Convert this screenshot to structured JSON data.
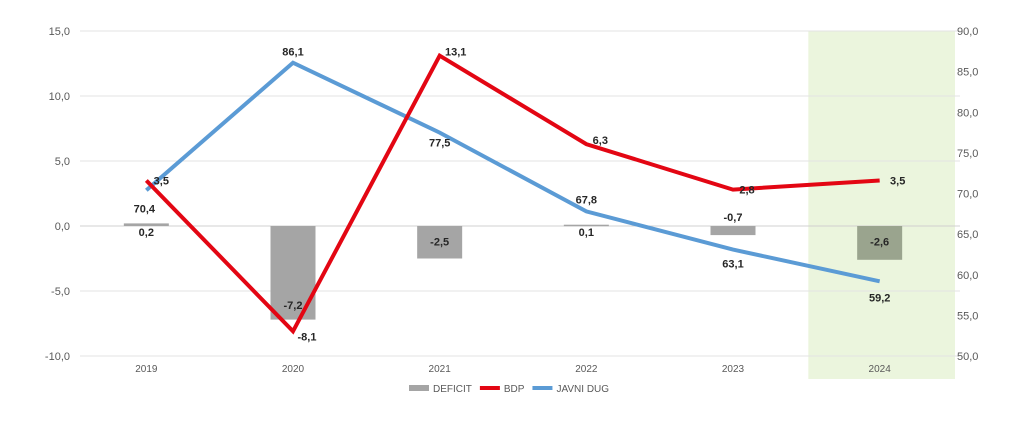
{
  "chart_data": {
    "type": "bar+line",
    "categories": [
      "2019",
      "2020",
      "2021",
      "2022",
      "2023",
      "2024"
    ],
    "series": [
      {
        "name": "DEFICIT",
        "kind": "bar",
        "axis": "left",
        "color": "#a5a5a5",
        "values": [
          0.2,
          -7.2,
          -2.5,
          0.1,
          -0.7,
          -2.6
        ],
        "labels": [
          "0,2",
          "-7,2",
          "-2,5",
          "0,1",
          "-0,7",
          "-2,6"
        ]
      },
      {
        "name": "BDP",
        "kind": "line",
        "axis": "left",
        "color": "#e30613",
        "values": [
          3.5,
          -8.1,
          13.1,
          6.3,
          2.8,
          3.5
        ],
        "labels": [
          "3,5",
          "-8,1",
          "13,1",
          "6,3",
          "2,8",
          "3,5"
        ]
      },
      {
        "name": "JAVNI DUG",
        "kind": "line",
        "axis": "right",
        "color": "#5b9bd5",
        "values": [
          70.4,
          86.1,
          77.5,
          67.8,
          63.1,
          59.2
        ],
        "labels": [
          "70,4",
          "86,1",
          "77,5",
          "67,8",
          "63,1",
          "59,2"
        ]
      }
    ],
    "y_left": {
      "min": -10,
      "max": 15,
      "step": 5,
      "ticks": [
        "15,0",
        "10,0",
        "5,0",
        "0,0",
        "-5,0",
        "-10,0"
      ]
    },
    "y_right": {
      "min": 50,
      "max": 90,
      "step": 5,
      "ticks": [
        "90,0",
        "85,0",
        "80,0",
        "75,0",
        "70,0",
        "65,0",
        "60,0",
        "55,0",
        "50,0"
      ]
    },
    "highlight": {
      "category": "2024",
      "color": "#ebf5dd"
    },
    "legend": {
      "position": "bottom"
    },
    "grid": true
  }
}
